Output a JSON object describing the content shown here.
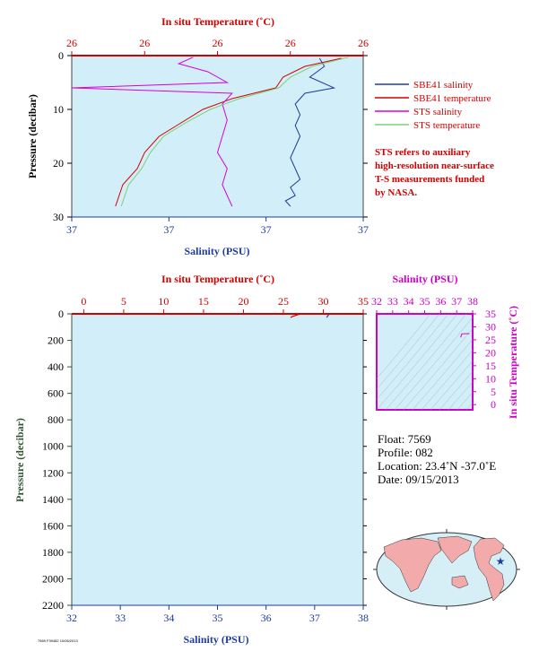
{
  "colors": {
    "plot_bg": "#d2eef8",
    "temperature": "#d40000",
    "salinity": "#1e3c9e",
    "pressure_axis": "#335533",
    "sts_salinity": "#d800d8",
    "sts_temperature": "#7ad27a",
    "ts_axes": "#d000c8",
    "land": "#f2aaaa",
    "ocean": "#d6eef6",
    "marker": "#1e3c9e"
  },
  "top_panel": {
    "temp_axis_title": "In situ Temperature (˚C)",
    "temp_tick_labels": [
      "26",
      "26",
      "26",
      "26",
      "26"
    ],
    "salinity_axis_title": "Salinity (PSU)",
    "salinity_tick_labels": [
      "37",
      "37",
      "37",
      "37"
    ],
    "pressure_axis_title": "Pressure (decibar)",
    "pressure_tick_labels": [
      "0",
      "10",
      "20",
      "30"
    ]
  },
  "legend": {
    "items": [
      {
        "label": "SBE41 salinity",
        "color": "#1e3c9e"
      },
      {
        "label": "SBE41 temperature",
        "color": "#d40000"
      },
      {
        "label": "STS salinity",
        "color": "#d800d8"
      },
      {
        "label": "STS temperature",
        "color": "#7ad27a"
      }
    ],
    "note_lines": [
      "STS refers to auxiliary",
      "high-resolution near-surface",
      "T-S measurements funded",
      "by NASA."
    ]
  },
  "bottom_panel": {
    "temp_axis_title": "In situ Temperature (˚C)",
    "temp_tick_labels": [
      "0",
      "5",
      "10",
      "15",
      "20",
      "25",
      "30",
      "35"
    ],
    "salinity_axis_title": "Salinity (PSU)",
    "salinity_tick_labels": [
      "32",
      "33",
      "34",
      "35",
      "36",
      "37",
      "38"
    ],
    "pressure_axis_title": "Pressure (decibar)",
    "pressure_tick_labels": [
      "0",
      "200",
      "400",
      "600",
      "800",
      "1000",
      "1200",
      "1400",
      "1600",
      "1800",
      "2000",
      "2200"
    ]
  },
  "ts_panel": {
    "salinity_axis_title": "Salinity (PSU)",
    "salinity_tick_labels": [
      "32",
      "33",
      "34",
      "35",
      "36",
      "37",
      "38"
    ],
    "temp_axis_title": "In situ Temperature (˚C)",
    "temp_tick_labels": [
      "0",
      "5",
      "10",
      "15",
      "20",
      "25",
      "30",
      "35"
    ]
  },
  "float_info": {
    "float": "Float:  7569",
    "profile": "Profile:  082",
    "location": "Location:  23.4˚N  -37.0˚E",
    "date": "Date:  09/15/2013"
  },
  "footer_code": "7569 F39482 10/06/2013",
  "chart_data": [
    {
      "type": "line",
      "panel": "top",
      "xlim_temperature": [
        25.5,
        27.5
      ],
      "xlim_salinity": [
        36.8,
        37.4
      ],
      "ylim_pressure": [
        30,
        0
      ],
      "series": [
        {
          "name": "SBE41 salinity",
          "axis": "salinity",
          "x": [
            37.31,
            37.32,
            37.29,
            37.34,
            37.28,
            37.26,
            37.27,
            37.26,
            37.27,
            37.26,
            37.25,
            37.26,
            37.27,
            37.25,
            37.26,
            37.24,
            37.25
          ],
          "y": [
            0.5,
            2,
            4,
            6,
            7,
            9,
            11,
            13,
            15,
            17,
            19,
            21,
            23,
            24.5,
            26,
            27,
            28
          ]
        },
        {
          "name": "SBE41 temperature",
          "axis": "temperature",
          "x": [
            27.35,
            27.1,
            26.95,
            26.9,
            26.6,
            26.4,
            26.25,
            26.1,
            26.0,
            25.95,
            25.85,
            25.8
          ],
          "y": [
            0.5,
            2,
            4,
            6,
            8,
            10,
            12.5,
            15,
            18,
            21,
            24,
            28
          ]
        },
        {
          "name": "STS salinity",
          "axis": "salinity",
          "x": [
            37.05,
            37.02,
            37.08,
            37.12,
            36.8,
            37.13,
            37.11,
            37.12,
            37.11,
            37.1,
            37.12,
            37.11,
            37.12,
            37.13
          ],
          "y": [
            0.3,
            1.5,
            3,
            5,
            6,
            7,
            9,
            12,
            15,
            18,
            21,
            24,
            26,
            28
          ]
        },
        {
          "name": "STS temperature",
          "axis": "temperature",
          "x": [
            27.4,
            27.15,
            27.0,
            26.92,
            26.65,
            26.45,
            26.28,
            26.13,
            26.04,
            25.98,
            25.89,
            25.84
          ],
          "y": [
            0.3,
            2,
            4,
            6,
            8,
            10,
            12.5,
            15,
            18,
            21,
            24,
            28
          ]
        }
      ]
    },
    {
      "type": "line",
      "panel": "bottom",
      "xlim_temperature": [
        -1.5,
        35
      ],
      "xlim_salinity": [
        32,
        38
      ],
      "ylim_pressure": [
        2200,
        0
      ],
      "series": [
        {
          "name": "SBE41 temperature",
          "axis": "temperature",
          "x": [
            27.3,
            26.9,
            26.6,
            26.1,
            25.9
          ],
          "y": [
            0,
            5,
            10,
            20,
            28
          ]
        },
        {
          "name": "SBE41 salinity",
          "axis": "salinity",
          "x": [
            37.3,
            37.28,
            37.26,
            37.25
          ],
          "y": [
            0,
            10,
            20,
            28
          ]
        }
      ]
    },
    {
      "type": "line",
      "panel": "ts",
      "xlim_salinity": [
        32,
        38
      ],
      "ylim_temperature": [
        -2,
        35
      ],
      "series": [
        {
          "name": "SBE41 T-S",
          "axis": "ts",
          "x": [
            37.25,
            37.27,
            37.3,
            37.32,
            37.8
          ],
          "y": [
            25.9,
            26.3,
            26.8,
            27.3,
            27.4
          ]
        }
      ]
    }
  ]
}
